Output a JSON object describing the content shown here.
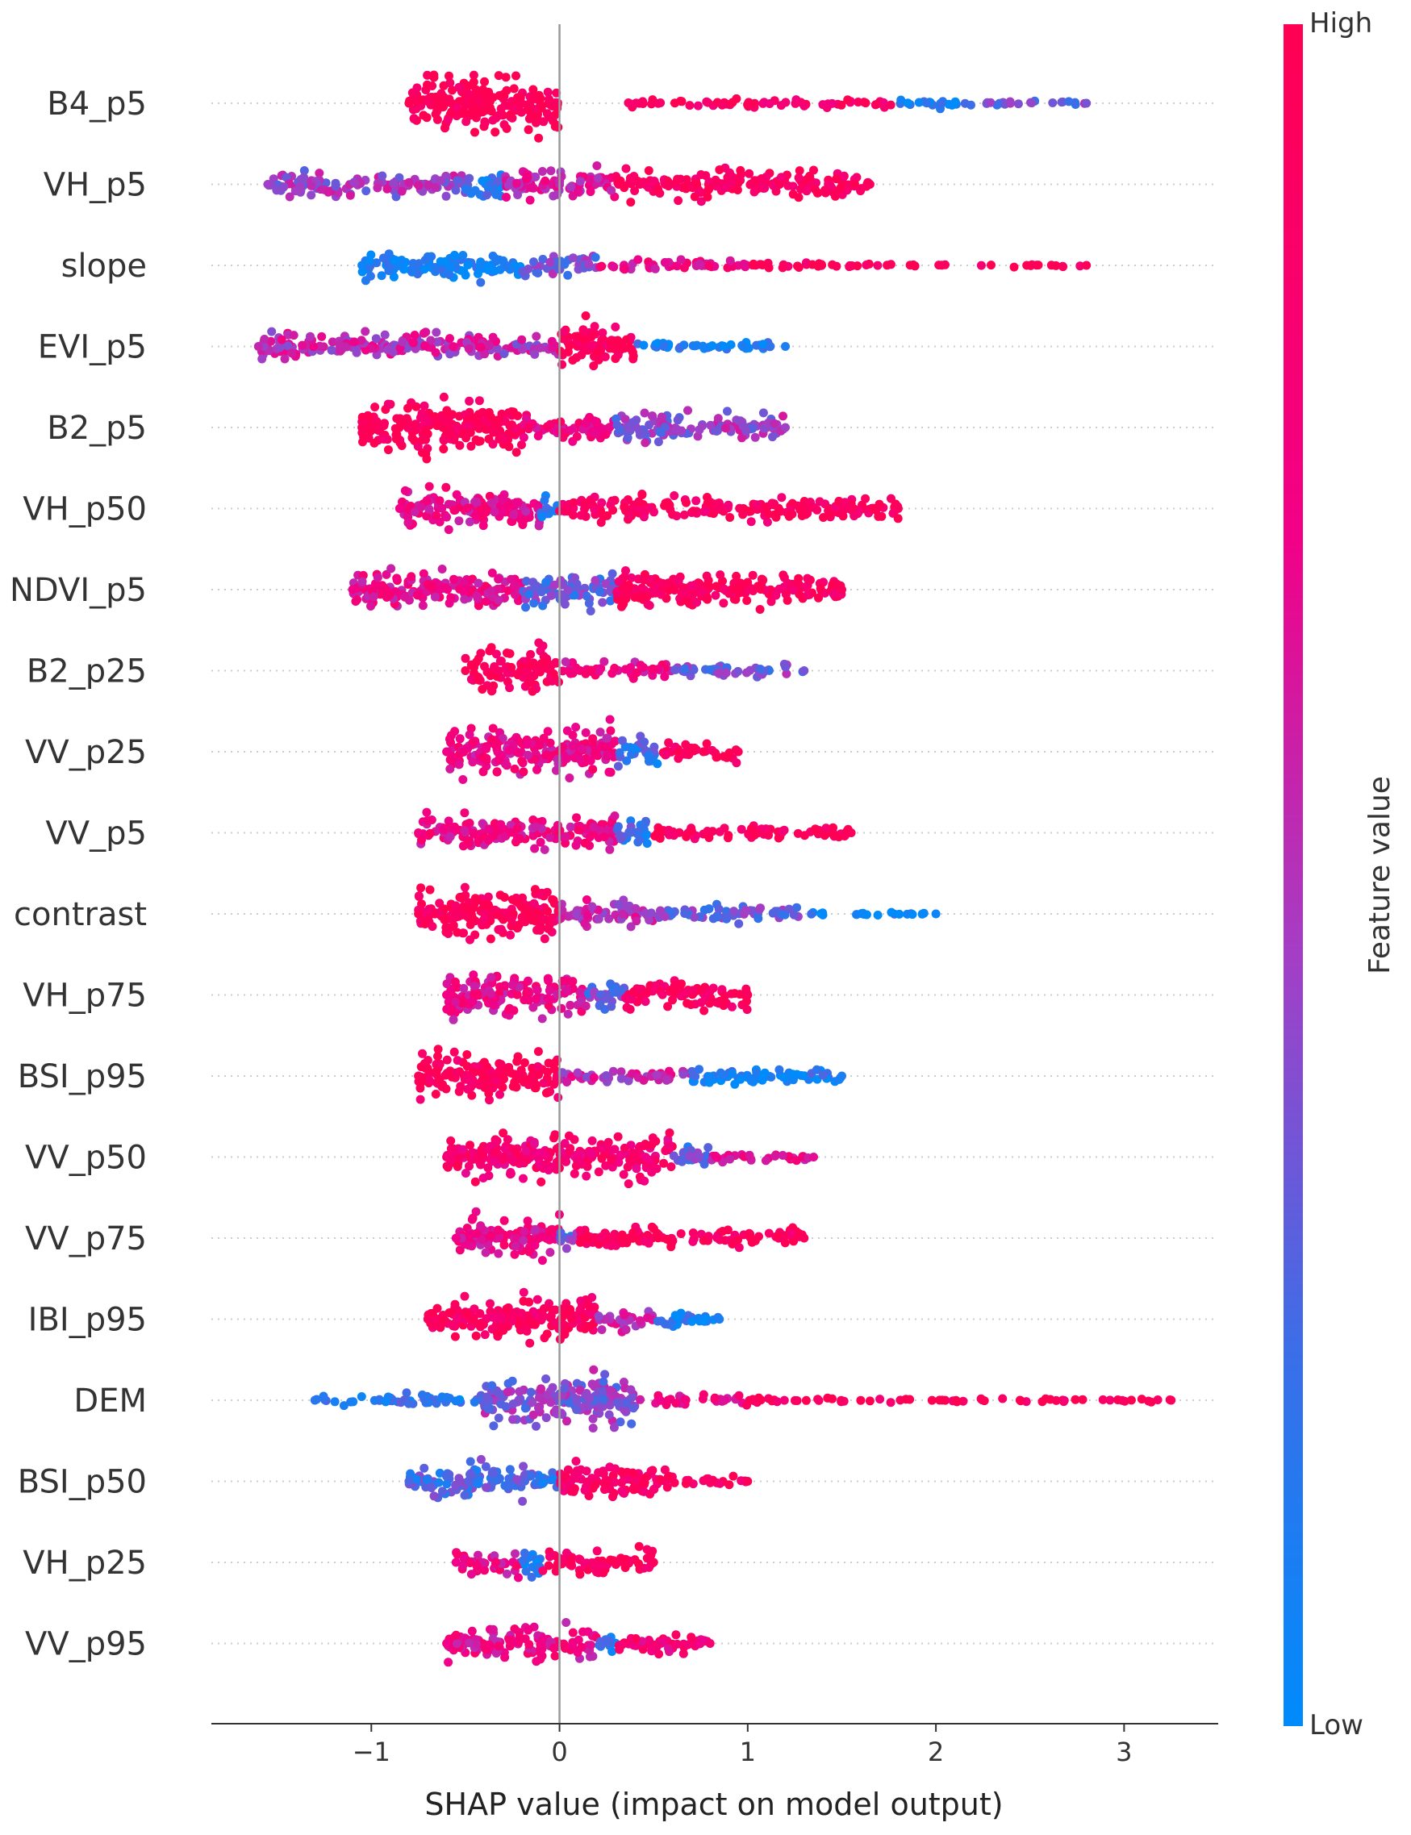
{
  "chart_data": {
    "type": "scatter",
    "subtype": "shap-beeswarm",
    "xlabel": "SHAP value (impact on model output)",
    "xlim": [
      -1.85,
      3.5
    ],
    "xticks": [
      -1,
      0,
      1,
      2,
      3
    ],
    "xtick_labels": [
      "−1",
      "0",
      "1",
      "2",
      "3"
    ],
    "zero_line": true,
    "colorbar": {
      "title": "Feature value",
      "high_label": "High",
      "low_label": "Low",
      "high_color": "#ff0052",
      "low_color": "#008bfb"
    },
    "features": [
      {
        "name": "B4_p5",
        "min": -0.8,
        "max": 2.8,
        "segments": [
          [
            -0.8,
            0.0,
            1.0,
            50
          ],
          [
            0.35,
            1.8,
            0.9,
            7
          ],
          [
            1.8,
            2.2,
            0.1,
            10
          ],
          [
            2.2,
            2.8,
            0.35,
            5
          ]
        ]
      },
      {
        "name": "VH_p5",
        "min": -1.55,
        "max": 1.65,
        "segments": [
          [
            -1.55,
            -0.5,
            0.45,
            22
          ],
          [
            -0.5,
            -0.3,
            0.15,
            30
          ],
          [
            -0.3,
            0.3,
            0.6,
            28
          ],
          [
            0.3,
            1.65,
            0.95,
            26
          ]
        ]
      },
      {
        "name": "slope",
        "min": -1.05,
        "max": 2.8,
        "segments": [
          [
            -1.05,
            -0.2,
            0.05,
            24
          ],
          [
            -0.2,
            0.2,
            0.35,
            22
          ],
          [
            0.2,
            1.0,
            0.7,
            10
          ],
          [
            1.0,
            2.8,
            0.95,
            4
          ]
        ]
      },
      {
        "name": "EVI_p5",
        "min": -1.6,
        "max": 1.2,
        "segments": [
          [
            -1.6,
            -0.3,
            0.55,
            24
          ],
          [
            -0.3,
            0.0,
            0.5,
            18
          ],
          [
            0.0,
            0.4,
            0.95,
            40
          ],
          [
            0.4,
            1.2,
            0.1,
            10
          ]
        ]
      },
      {
        "name": "B2_p5",
        "min": -1.05,
        "max": 1.2,
        "segments": [
          [
            -1.05,
            -0.2,
            0.97,
            45
          ],
          [
            -0.2,
            0.3,
            0.75,
            26
          ],
          [
            0.3,
            0.7,
            0.4,
            30
          ],
          [
            0.7,
            1.2,
            0.45,
            22
          ]
        ]
      },
      {
        "name": "VH_p50",
        "min": -0.85,
        "max": 1.8,
        "segments": [
          [
            -0.85,
            -0.1,
            0.7,
            36
          ],
          [
            -0.1,
            0.0,
            0.1,
            22
          ],
          [
            0.0,
            1.8,
            0.93,
            22
          ]
        ]
      },
      {
        "name": "NDVI_p5",
        "min": -1.1,
        "max": 1.5,
        "segments": [
          [
            -1.1,
            -0.2,
            0.7,
            34
          ],
          [
            -0.2,
            0.3,
            0.3,
            32
          ],
          [
            0.3,
            1.5,
            0.95,
            32
          ]
        ]
      },
      {
        "name": "B2_p25",
        "min": -0.5,
        "max": 1.3,
        "segments": [
          [
            -0.5,
            0.0,
            0.97,
            40
          ],
          [
            0.0,
            0.6,
            0.7,
            14
          ],
          [
            0.6,
            1.3,
            0.35,
            12
          ]
        ]
      },
      {
        "name": "VV_p25",
        "min": -0.6,
        "max": 0.95,
        "segments": [
          [
            -0.6,
            0.3,
            0.7,
            44
          ],
          [
            0.3,
            0.55,
            0.2,
            24
          ],
          [
            0.55,
            0.95,
            0.95,
            18
          ]
        ]
      },
      {
        "name": "VV_p5",
        "min": -0.75,
        "max": 1.55,
        "segments": [
          [
            -0.75,
            0.3,
            0.72,
            34
          ],
          [
            0.3,
            0.5,
            0.2,
            24
          ],
          [
            0.5,
            1.55,
            0.95,
            14
          ]
        ]
      },
      {
        "name": "contrast",
        "min": -0.75,
        "max": 2.0,
        "segments": [
          [
            -0.75,
            0.0,
            0.97,
            48
          ],
          [
            0.0,
            0.5,
            0.55,
            22
          ],
          [
            0.5,
            1.3,
            0.3,
            14
          ],
          [
            1.3,
            2.0,
            0.05,
            4
          ]
        ]
      },
      {
        "name": "VH_p75",
        "min": -0.6,
        "max": 1.0,
        "segments": [
          [
            -0.6,
            0.15,
            0.7,
            40
          ],
          [
            0.15,
            0.35,
            0.3,
            26
          ],
          [
            0.35,
            1.0,
            0.95,
            24
          ]
        ]
      },
      {
        "name": "BSI_p95",
        "min": -0.75,
        "max": 1.5,
        "segments": [
          [
            -0.75,
            0.0,
            0.96,
            40
          ],
          [
            0.0,
            0.7,
            0.55,
            12
          ],
          [
            0.7,
            1.5,
            0.1,
            16
          ]
        ]
      },
      {
        "name": "VV_p50",
        "min": -0.6,
        "max": 1.35,
        "segments": [
          [
            -0.6,
            0.6,
            0.82,
            40
          ],
          [
            0.6,
            0.8,
            0.3,
            24
          ],
          [
            0.8,
            1.35,
            0.65,
            10
          ]
        ]
      },
      {
        "name": "VV_p75",
        "min": -0.55,
        "max": 1.3,
        "segments": [
          [
            -0.55,
            0.0,
            0.7,
            40
          ],
          [
            0.0,
            0.1,
            0.3,
            24
          ],
          [
            0.1,
            1.3,
            0.95,
            18
          ]
        ]
      },
      {
        "name": "IBI_p95",
        "min": -0.7,
        "max": 0.85,
        "segments": [
          [
            -0.7,
            0.2,
            0.93,
            38
          ],
          [
            0.2,
            0.5,
            0.55,
            22
          ],
          [
            0.5,
            0.85,
            0.1,
            14
          ]
        ]
      },
      {
        "name": "DEM",
        "min": -1.3,
        "max": 3.25,
        "segments": [
          [
            -1.3,
            -0.4,
            0.15,
            10
          ],
          [
            -0.4,
            0.4,
            0.4,
            44
          ],
          [
            0.4,
            1.0,
            0.75,
            10
          ],
          [
            1.0,
            3.25,
            0.96,
            4
          ]
        ]
      },
      {
        "name": "BSI_p50",
        "min": -0.8,
        "max": 1.0,
        "segments": [
          [
            -0.8,
            -0.1,
            0.25,
            30
          ],
          [
            -0.1,
            0.0,
            0.2,
            22
          ],
          [
            0.0,
            0.6,
            0.9,
            34
          ],
          [
            0.6,
            1.0,
            0.96,
            8
          ]
        ]
      },
      {
        "name": "VH_p25",
        "min": -0.55,
        "max": 0.5,
        "segments": [
          [
            -0.55,
            -0.2,
            0.7,
            26
          ],
          [
            -0.2,
            -0.1,
            0.1,
            30
          ],
          [
            -0.1,
            0.5,
            0.95,
            24
          ]
        ]
      },
      {
        "name": "VV_p95",
        "min": -0.6,
        "max": 0.8,
        "segments": [
          [
            -0.6,
            0.2,
            0.7,
            32
          ],
          [
            0.2,
            0.3,
            0.2,
            24
          ],
          [
            0.3,
            0.8,
            0.8,
            18
          ]
        ]
      }
    ]
  }
}
